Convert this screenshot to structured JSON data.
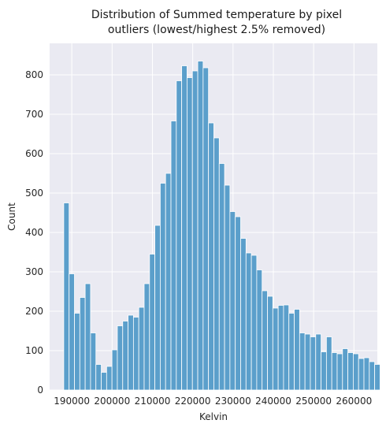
{
  "chart_data": {
    "type": "bar",
    "title_line1": "Distribution of Summed temperature by pixel",
    "title_line2": "outliers (lowest/highest 2.5% removed)",
    "xlabel": "Kelvin",
    "ylabel": "Count",
    "xlim": [
      184500,
      265800
    ],
    "ylim": [
      0,
      880
    ],
    "xticks": [
      190000,
      200000,
      210000,
      220000,
      230000,
      240000,
      250000,
      260000
    ],
    "yticks": [
      0,
      100,
      200,
      300,
      400,
      500,
      600,
      700,
      800
    ],
    "bin_start": 188000,
    "bin_width": 1330,
    "values": [
      475,
      295,
      195,
      235,
      270,
      145,
      65,
      45,
      60,
      102,
      163,
      175,
      190,
      185,
      210,
      270,
      345,
      418,
      525,
      550,
      683,
      785,
      823,
      793,
      810,
      835,
      818,
      678,
      640,
      575,
      520,
      453,
      440,
      385,
      348,
      342,
      305,
      252,
      238,
      208,
      215,
      216,
      195,
      205,
      145,
      142,
      135,
      142,
      97,
      135,
      95,
      92,
      105,
      95,
      92,
      80,
      82,
      72,
      65
    ],
    "grid": true,
    "colors": {
      "bar": "#5b9fcb",
      "bar_edge": "#ffffff",
      "plot_bg": "#eaeaf2",
      "grid": "#ffffff"
    }
  }
}
